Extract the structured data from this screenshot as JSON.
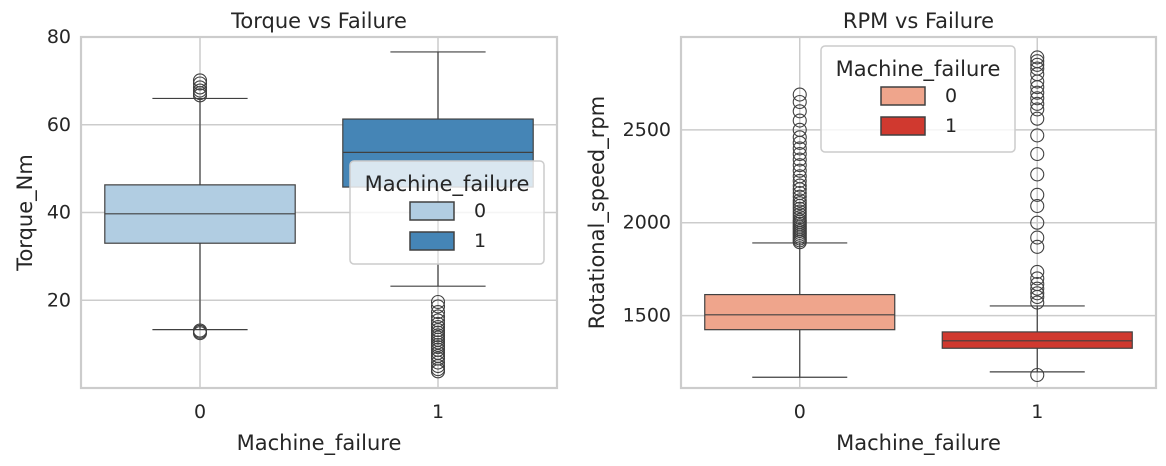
{
  "chart_data": [
    {
      "type": "box",
      "title": "Torque vs Failure",
      "xlabel": "Machine_failure",
      "ylabel": "Torque_Nm",
      "categories": [
        "0",
        "1"
      ],
      "ylim": [
        0,
        80
      ],
      "yticks": [
        20,
        40,
        60,
        80
      ],
      "grid": true,
      "palette": [
        "#b1cde2",
        "#4585b6"
      ],
      "boxes": [
        {
          "category": "0",
          "whisker_low": 13.3,
          "q1": 33.0,
          "median": 39.7,
          "q3": 46.3,
          "whisker_high": 66.0,
          "outliers": [
            12.5,
            12.8,
            13.1,
            66.7,
            67.2,
            67.8,
            68.5,
            69.4,
            70.1
          ]
        },
        {
          "category": "1",
          "whisker_low": 23.2,
          "q1": 45.8,
          "median": 53.7,
          "q3": 61.3,
          "whisker_high": 76.6,
          "outliers": [
            3.8,
            4.3,
            5.0,
            5.8,
            6.7,
            7.3,
            8.0,
            8.7,
            9.3,
            9.8,
            10.4,
            11.0,
            11.5,
            12.0,
            12.6,
            13.2,
            13.9,
            14.6,
            15.4,
            16.3,
            17.3,
            18.6,
            19.6
          ]
        }
      ],
      "legend": {
        "title": "Machine_failure",
        "entries": [
          "0",
          "1"
        ],
        "placement": "center-right"
      }
    },
    {
      "type": "box",
      "title": "RPM vs Failure",
      "xlabel": "Machine_failure",
      "ylabel": "Rotational_speed_rpm",
      "categories": [
        "0",
        "1"
      ],
      "ylim": [
        1110,
        3000
      ],
      "yticks": [
        1500,
        2000,
        2500
      ],
      "grid": true,
      "palette": [
        "#efa58c",
        "#d0392f"
      ],
      "boxes": [
        {
          "category": "0",
          "whisker_low": 1168,
          "q1": 1424,
          "median": 1504,
          "q3": 1613,
          "whisker_high": 1891,
          "outliers": [
            1895,
            1905,
            1915,
            1925,
            1935,
            1945,
            1955,
            1965,
            1975,
            1985,
            1995,
            2005,
            2015,
            2030,
            2045,
            2060,
            2075,
            2090,
            2105,
            2120,
            2140,
            2160,
            2180,
            2200,
            2225,
            2250,
            2280,
            2310,
            2340,
            2370,
            2400,
            2430,
            2460,
            2500,
            2550,
            2600,
            2650,
            2690
          ]
        },
        {
          "category": "1",
          "whisker_low": 1197,
          "q1": 1324,
          "median": 1364,
          "q3": 1412,
          "whisker_high": 1552,
          "outliers": [
            1180,
            1570,
            1600,
            1620,
            1645,
            1670,
            1700,
            1735,
            1870,
            1920,
            2000,
            2090,
            2150,
            2260,
            2370,
            2470,
            2560,
            2610,
            2640,
            2670,
            2700,
            2730,
            2760,
            2800,
            2830,
            2850,
            2870,
            2890
          ]
        }
      ],
      "legend": {
        "title": "Machine_failure",
        "entries": [
          "0",
          "1"
        ],
        "placement": "upper-center"
      }
    }
  ]
}
